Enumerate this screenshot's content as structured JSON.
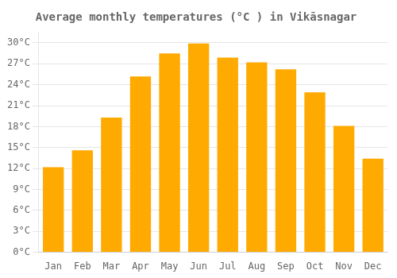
{
  "chart_data": {
    "type": "bar",
    "title": "Average monthly temperatures (°C ) in Vikāsnagar",
    "categories": [
      "Jan",
      "Feb",
      "Mar",
      "Apr",
      "May",
      "Jun",
      "Jul",
      "Aug",
      "Sep",
      "Oct",
      "Nov",
      "Dec"
    ],
    "values": [
      12.2,
      14.6,
      19.3,
      25.2,
      28.5,
      29.9,
      27.9,
      27.2,
      26.2,
      22.9,
      18.1,
      13.4
    ],
    "color": "#FFAA00",
    "ylim": [
      0,
      31.5
    ],
    "yticks": [
      {
        "value": 0,
        "label": "0°C"
      },
      {
        "value": 3,
        "label": "3°C"
      },
      {
        "value": 6,
        "label": "6°C"
      },
      {
        "value": 9,
        "label": "9°C"
      },
      {
        "value": 12,
        "label": "12°C"
      },
      {
        "value": 15,
        "label": "15°C"
      },
      {
        "value": 18,
        "label": "18°C"
      },
      {
        "value": 21,
        "label": "21°C"
      },
      {
        "value": 24,
        "label": "24°C"
      },
      {
        "value": 27,
        "label": "27°C"
      },
      {
        "value": 30,
        "label": "30°C"
      }
    ],
    "grid": true
  }
}
